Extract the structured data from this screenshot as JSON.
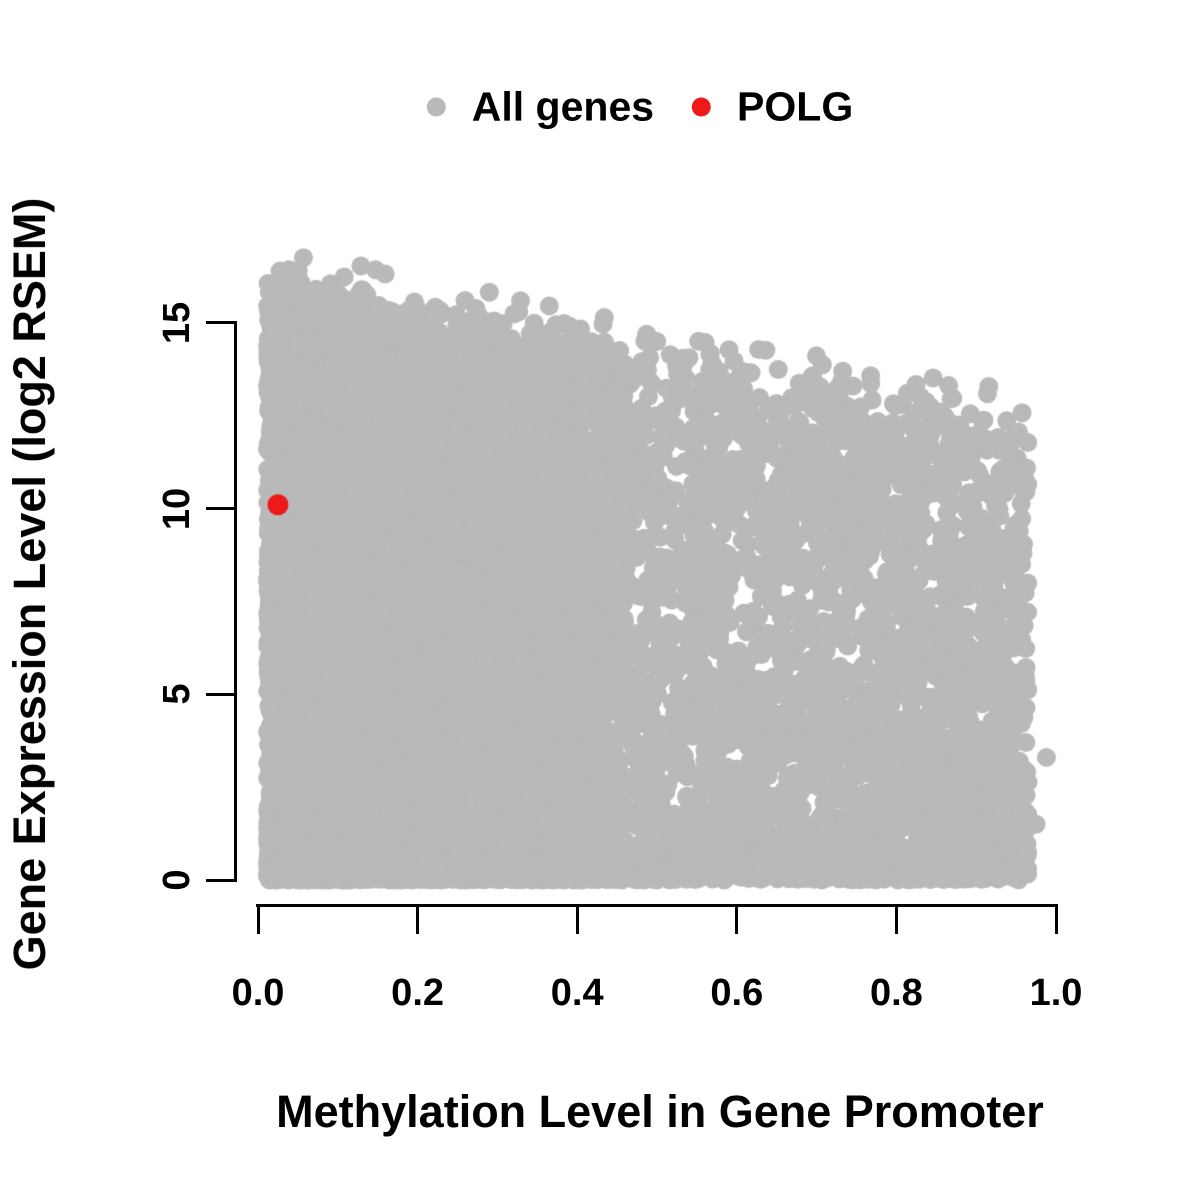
{
  "figure": {
    "background": "#FFFFFF",
    "legend": {
      "items": [
        {
          "label": "All genes",
          "color": "#B9B9B9",
          "marker": "filled-circle"
        },
        {
          "label": "POLG",
          "color": "#EE1A1A",
          "marker": "filled-circle"
        }
      ]
    },
    "x_axis": {
      "label": "Methylation Level in Gene Promoter",
      "ticks": [
        "0.0",
        "0.2",
        "0.4",
        "0.6",
        "0.8",
        "1.0"
      ],
      "tick_values": [
        0,
        0.2,
        0.4,
        0.6,
        0.8,
        1.0
      ]
    },
    "y_axis": {
      "label": "Gene Expression Level (log2 RSEM)",
      "ticks": [
        "0",
        "5",
        "10",
        "15"
      ],
      "tick_values": [
        0,
        5,
        10,
        15
      ]
    }
  },
  "chart_data": {
    "type": "scatter",
    "title": "",
    "xlabel": "Methylation Level in Gene Promoter",
    "ylabel": "Gene Expression Level (log2 RSEM)",
    "xlim": [
      0,
      1
    ],
    "ylim": [
      0,
      15
    ],
    "grid": false,
    "legend_position": "top-center",
    "axis_color": "#000000",
    "point_radius_px": 9.5,
    "series": [
      {
        "name": "All genes",
        "color": "#B9B9B9",
        "description": "Dense overplotted cloud of ~12000 genes; methylation 0.01-0.97, expression 0-16.8; very dense solid mass at low methylation, upper envelope of expression declines from ~16 at x=0 to ~12 at x=1; solid band along y=0 across full x range.",
        "generator": {
          "seed": 12,
          "n_main": 11500,
          "n_bottom": 1700,
          "n_outliers": 48,
          "x_min": 0.012,
          "x_max": 0.965,
          "dense_frac": 0.58,
          "dense_x_max": 0.46,
          "dense_pow": 1.25,
          "spread_pow": 0.82,
          "env_at_x0": 16.0,
          "env_at_x1": 11.9,
          "env_noise": 1.4,
          "y_pow": 1.2,
          "bottom_sigma": 0.38,
          "y_max": 16.75
        },
        "notable_points": [
          [
            0.988,
            3.3
          ],
          [
            0.975,
            1.5
          ]
        ]
      },
      {
        "name": "POLG",
        "color": "#EE1A1A",
        "points": [
          [
            0.025,
            10.1
          ]
        ],
        "point_radius_px": 10.5
      }
    ]
  }
}
